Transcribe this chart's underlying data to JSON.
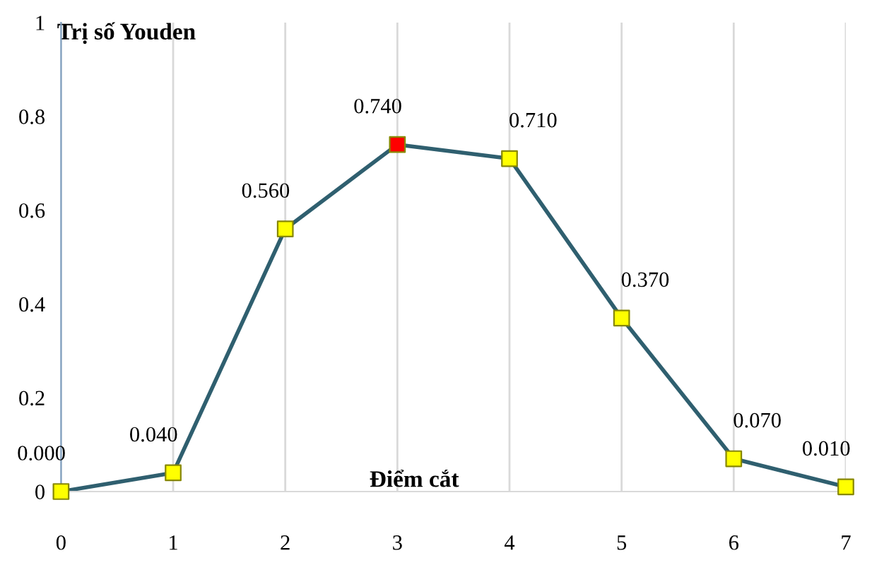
{
  "chart_data": {
    "type": "line",
    "xlabel": "Điểm cắt",
    "ylabel": "Trị số Youden",
    "x": [
      0,
      1,
      2,
      3,
      4,
      5,
      6,
      7
    ],
    "series": [
      {
        "color": "#2f5f6f",
        "values": [
          0.0,
          0.04,
          0.56,
          0.74,
          0.71,
          0.37,
          0.07,
          0.01
        ],
        "colors": [
          "#ffff00",
          "#ffff00",
          "#ffff00",
          "#ff0000",
          "#ffff00",
          "#ffff00",
          "#ffff00",
          "#ffff00"
        ],
        "value_labels": [
          "0.000",
          "0.040",
          "0.560",
          "0.740",
          "0.710",
          "0.370",
          "0.070",
          "0.010"
        ]
      }
    ],
    "xlim": [
      0,
      7
    ],
    "xticks": [
      0,
      1,
      2,
      3,
      4,
      5,
      6,
      7
    ],
    "ylim": [
      0,
      1
    ],
    "yticks": [
      0,
      0.2,
      0.4,
      0.6,
      0.8,
      1
    ],
    "grid": "x",
    "marker": "square",
    "line_style": "solid"
  }
}
